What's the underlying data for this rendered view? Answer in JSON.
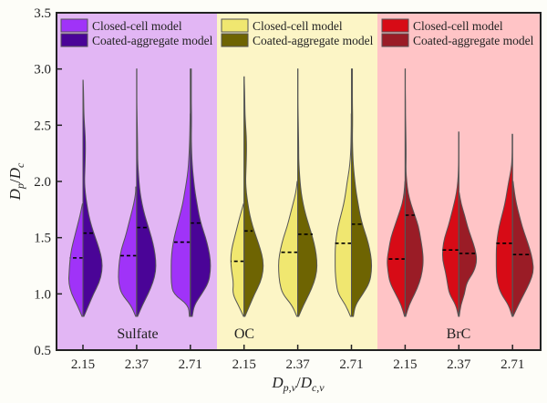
{
  "chart_data": {
    "type": "split-violin",
    "xlabel": {
      "main": "D",
      "sub1": "p,v",
      "sep": "/",
      "main2": "D",
      "sub2": "c,v"
    },
    "ylabel": {
      "main": "D",
      "sub1": "p",
      "sep": "/",
      "main2": "D",
      "sub2": "c"
    },
    "ylim": [
      0.5,
      3.5
    ],
    "yticks": [
      "0.5",
      "1.0",
      "1.5",
      "2.0",
      "2.5",
      "3.0",
      "3.5"
    ],
    "y_levels": [
      0.8,
      0.9,
      1.0,
      1.1,
      1.2,
      1.3,
      1.4,
      1.5,
      1.6,
      1.7,
      1.8,
      1.9,
      2.0,
      2.1,
      2.2,
      2.3,
      2.4,
      2.5,
      2.6,
      2.7,
      2.8,
      2.9,
      3.0
    ],
    "groups": [
      {
        "name": "Sulfate",
        "background": "#e2b6f4",
        "colors": {
          "closed": "#a033f8",
          "coated": "#4a0497"
        },
        "legend": [
          "Closed-cell model",
          "Coated-aggregate model"
        ],
        "violins": [
          {
            "x": "2.15",
            "closed": {
              "min": 0.8,
              "max": 1.8,
              "median": 1.32,
              "density": [
                0.05,
                0.3,
                0.6,
                0.75,
                0.72,
                0.68,
                0.6,
                0.45,
                0.3,
                0.15,
                0.03
              ]
            },
            "coated": {
              "min": 0.8,
              "max": 2.9,
              "median": 1.54,
              "density": [
                0.05,
                0.3,
                0.55,
                0.85,
                1.0,
                1.0,
                0.85,
                0.65,
                0.45,
                0.3,
                0.2,
                0.12,
                0.08,
                0.1,
                0.12,
                0.13,
                0.12,
                0.08,
                0.05,
                0.04,
                0.03,
                0.01
              ]
            }
          },
          {
            "x": "2.37",
            "closed": {
              "min": 0.8,
              "max": 1.95,
              "median": 1.34,
              "density": [
                0.05,
                0.3,
                0.8,
                0.95,
                0.95,
                0.9,
                0.8,
                0.6,
                0.45,
                0.3,
                0.15,
                0.05
              ]
            },
            "coated": {
              "min": 0.8,
              "max": 3.0,
              "median": 1.59,
              "density": [
                0.05,
                0.3,
                0.6,
                0.85,
                1.0,
                1.0,
                0.92,
                0.78,
                0.6,
                0.42,
                0.28,
                0.18,
                0.12,
                0.08,
                0.05,
                0.05,
                0.04,
                0.03,
                0.02,
                0.01,
                0.01,
                0.01,
                0.01
              ]
            }
          },
          {
            "x": "2.71",
            "closed": {
              "min": 0.8,
              "max": 2.6,
              "median": 1.46,
              "density": [
                0.05,
                0.1,
                0.9,
                1.0,
                1.0,
                1.0,
                0.95,
                0.85,
                0.7,
                0.55,
                0.4,
                0.3,
                0.2,
                0.12,
                0.08,
                0.05,
                0.03,
                0.02,
                0.01
              ]
            },
            "coated": {
              "min": 0.8,
              "max": 3.0,
              "median": 1.63,
              "density": [
                0.1,
                0.2,
                0.6,
                0.95,
                1.05,
                1.05,
                0.95,
                0.8,
                0.6,
                0.45,
                0.35,
                0.25,
                0.18,
                0.12,
                0.08,
                0.06,
                0.05,
                0.06,
                0.06,
                0.05,
                0.05,
                0.05,
                0.05
              ]
            }
          }
        ]
      },
      {
        "name": "OC",
        "background": "#fcf5c6",
        "colors": {
          "closed": "#f0e770",
          "coated": "#6e6402"
        },
        "legend": [
          "Closed-cell model",
          "Coated-aggregate model"
        ],
        "violins": [
          {
            "x": "2.15",
            "closed": {
              "min": 0.8,
              "max": 1.8,
              "median": 1.29,
              "density": [
                0.03,
                0.3,
                0.6,
                0.55,
                0.65,
                0.7,
                0.65,
                0.5,
                0.35,
                0.2,
                0.03
              ]
            },
            "coated": {
              "min": 0.8,
              "max": 2.93,
              "median": 1.56,
              "density": [
                0.05,
                0.3,
                0.55,
                0.85,
                1.0,
                1.0,
                0.85,
                0.65,
                0.45,
                0.3,
                0.2,
                0.12,
                0.08,
                0.1,
                0.12,
                0.13,
                0.12,
                0.08,
                0.05,
                0.04,
                0.03,
                0.01
              ]
            }
          },
          {
            "x": "2.37",
            "closed": {
              "min": 0.8,
              "max": 2.0,
              "median": 1.37,
              "density": [
                0.05,
                0.3,
                0.8,
                0.95,
                1.0,
                1.0,
                0.9,
                0.75,
                0.55,
                0.4,
                0.25,
                0.1,
                0.03
              ]
            },
            "coated": {
              "min": 0.8,
              "max": 3.0,
              "median": 1.53,
              "density": [
                0.05,
                0.3,
                0.6,
                0.85,
                1.0,
                1.0,
                0.92,
                0.78,
                0.6,
                0.42,
                0.28,
                0.18,
                0.12,
                0.08,
                0.05,
                0.05,
                0.04,
                0.03,
                0.02,
                0.01,
                0.01,
                0.01,
                0.01
              ]
            }
          },
          {
            "x": "2.71",
            "closed": {
              "min": 0.8,
              "max": 2.6,
              "median": 1.45,
              "density": [
                0.05,
                0.3,
                0.7,
                0.8,
                0.85,
                0.85,
                0.85,
                0.8,
                0.7,
                0.55,
                0.4,
                0.3,
                0.22,
                0.12,
                0.06,
                0.03,
                0.02,
                0.01
              ]
            },
            "coated": {
              "min": 0.8,
              "max": 3.0,
              "median": 1.62,
              "density": [
                0.1,
                0.2,
                0.6,
                0.95,
                1.05,
                1.05,
                0.95,
                0.8,
                0.6,
                0.45,
                0.35,
                0.25,
                0.18,
                0.12,
                0.08,
                0.06,
                0.05,
                0.06,
                0.06,
                0.05,
                0.05,
                0.05,
                0.05
              ]
            }
          }
        ]
      },
      {
        "name": "BrC",
        "background": "#ffc4c6",
        "colors": {
          "closed": "#d70b16",
          "coated": "#9a1c26"
        },
        "legend": [
          "Closed-cell model",
          "Coated-aggregate model"
        ],
        "violins": [
          {
            "x": "2.15",
            "closed": {
              "min": 0.8,
              "max": 2.0,
              "median": 1.31,
              "density": [
                0.03,
                0.2,
                0.5,
                0.8,
                0.9,
                0.95,
                0.85,
                0.75,
                0.55,
                0.35,
                0.15,
                0.05,
                0.01
              ]
            },
            "coated": {
              "min": 0.8,
              "max": 3.0,
              "median": 1.7,
              "density": [
                0.03,
                0.2,
                0.5,
                0.75,
                0.9,
                0.95,
                0.9,
                0.8,
                0.7,
                0.5,
                0.3,
                0.15,
                0.08,
                0.04,
                0.05,
                0.05,
                0.04,
                0.03,
                0.02,
                0.02,
                0.01,
                0.01,
                0.01
              ]
            }
          },
          {
            "x": "2.37",
            "closed": {
              "min": 0.8,
              "max": 2.44,
              "median": 1.39,
              "density": [
                0.02,
                0.15,
                0.5,
                0.6,
                0.7,
                0.85,
                0.85,
                0.75,
                0.55,
                0.4,
                0.25,
                0.12,
                0.05,
                0.02,
                0.01
              ]
            },
            "coated": {
              "min": 0.8,
              "max": 1.9,
              "median": 1.36,
              "density": [
                0.02,
                0.1,
                0.3,
                0.4,
                0.8,
                0.95,
                0.85,
                0.65,
                0.45,
                0.3,
                0.12,
                0.02
              ]
            }
          },
          {
            "x": "2.71",
            "closed": {
              "min": 0.8,
              "max": 2.42,
              "median": 1.45,
              "density": [
                0.02,
                0.2,
                0.6,
                0.8,
                0.85,
                0.85,
                0.85,
                0.8,
                0.7,
                0.55,
                0.4,
                0.3,
                0.2,
                0.08,
                0.02
              ]
            },
            "coated": {
              "min": 0.8,
              "max": 2.0,
              "median": 1.35,
              "density": [
                0.03,
                0.3,
                0.6,
                0.9,
                1.1,
                1.05,
                0.9,
                0.7,
                0.5,
                0.35,
                0.2,
                0.1,
                0.03
              ]
            }
          }
        ]
      }
    ]
  }
}
